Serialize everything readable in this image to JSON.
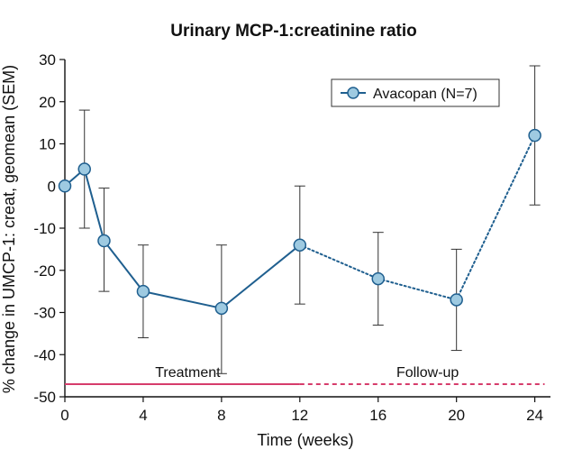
{
  "chart_data": {
    "type": "line",
    "title": "Urinary MCP-1:creatinine ratio",
    "xlabel": "Time (weeks)",
    "ylabel": "% change in UMCP-1: creat, geomean (SEM)",
    "xlim": [
      0,
      24.8
    ],
    "ylim": [
      -50,
      30
    ],
    "x_ticks": [
      0,
      4,
      8,
      12,
      16,
      20,
      24
    ],
    "y_ticks": [
      30,
      20,
      10,
      0,
      -10,
      -20,
      -30,
      -40,
      -50
    ],
    "legend": {
      "label": "Avacopan (N=7)",
      "placement": "top-right"
    },
    "series": [
      {
        "name": "Avacopan (N=7)",
        "points": [
          {
            "x": 0,
            "y": 0,
            "err_low": 0,
            "err_high": 0
          },
          {
            "x": 1,
            "y": 4,
            "err_low": -10,
            "err_high": 18
          },
          {
            "x": 2,
            "y": -13,
            "err_low": -25,
            "err_high": -0.5
          },
          {
            "x": 4,
            "y": -25,
            "err_low": -36,
            "err_high": -14
          },
          {
            "x": 8,
            "y": -29,
            "err_low": -44.5,
            "err_high": -14
          },
          {
            "x": 12,
            "y": -14,
            "err_low": -28,
            "err_high": 0
          },
          {
            "x": 16,
            "y": -22,
            "err_low": -33,
            "err_high": -11
          },
          {
            "x": 20,
            "y": -27,
            "err_low": -39,
            "err_high": -15
          },
          {
            "x": 24,
            "y": 12,
            "err_low": -4.5,
            "err_high": 28.5
          }
        ],
        "treatment_end_x": 12
      }
    ],
    "period_bars": {
      "y": -47,
      "treatment": {
        "label": "Treatment",
        "x_start": 0,
        "x_end": 12
      },
      "follow_up": {
        "label": "Follow-up",
        "x_start": 12,
        "x_end": 24.5
      }
    },
    "colors": {
      "series_line": "#1f5f8f",
      "marker_fill": "#9ecae1",
      "marker_stroke": "#1f5f8f",
      "error_bar": "#333333",
      "period_bar": "#d63c6b",
      "axis": "#111111"
    }
  }
}
